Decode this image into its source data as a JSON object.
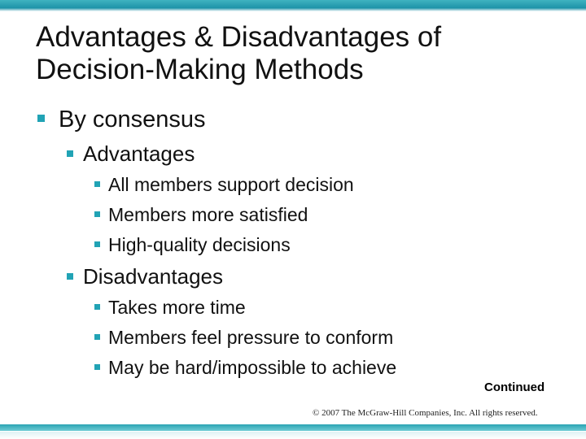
{
  "slide": {
    "title_line1": "Advantages & Disadvantages of",
    "title_line2": "Decision-Making Methods",
    "topic": "By consensus",
    "advantages": {
      "label": "Advantages",
      "items": [
        "All members support decision",
        "Members more satisfied",
        "High-quality decisions"
      ]
    },
    "disadvantages": {
      "label": "Disadvantages",
      "items": [
        "Takes more time",
        "Members feel pressure to conform",
        "May be hard/impossible to achieve"
      ]
    },
    "continued": "Continued",
    "copyright": "© 2007 The McGraw-Hill Companies, Inc. All rights reserved."
  },
  "colors": {
    "accent": "#21a3b5",
    "bar": "#1e93a8"
  }
}
